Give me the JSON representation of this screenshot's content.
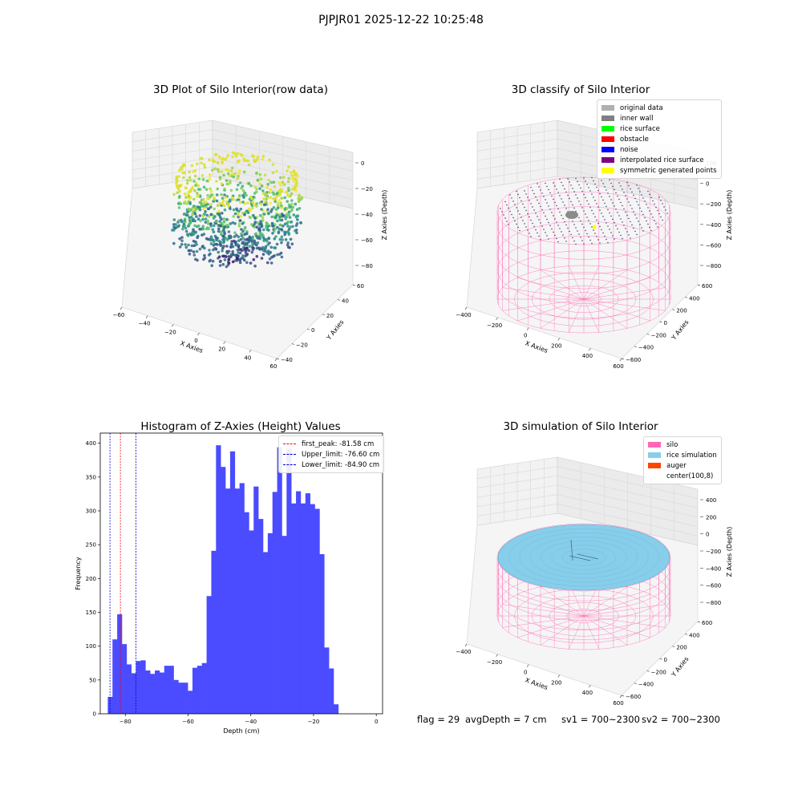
{
  "suptitle": "PJPJR01 2025-12-22 10:25:48",
  "footer": {
    "flag": "flag = 29",
    "avg_depth": "avgDepth = 7 cm",
    "sv1": "sv1 = 700~2300",
    "sv2": "sv2 = 700~2300"
  },
  "colors": {
    "histogram_bar": "#4b4bff",
    "first_peak": "#ff0000",
    "limits": "#0000cc",
    "silo_mesh": "#ff69b4",
    "rice_sim": "#87ceeb",
    "auger": "#ff4500"
  },
  "chart_data": [
    {
      "type": "scatter3d",
      "title": "3D Plot of Silo Interior(row data)",
      "xlabel": "X Axies",
      "ylabel": "Y Axies",
      "zlabel": "Z Axies (Depth)",
      "x_ticks": [
        "−60",
        "−40",
        "−20",
        "0",
        "20",
        "40",
        "60"
      ],
      "y_ticks": [
        "−40",
        "−20",
        "0",
        "20",
        "40",
        "60"
      ],
      "z_ticks": [
        "0",
        "−20",
        "−40",
        "−60",
        "−80"
      ],
      "colormap": "viridis",
      "xlim": [
        -60,
        60
      ],
      "ylim": [
        -40,
        60
      ],
      "zlim": [
        -90,
        0
      ]
    },
    {
      "type": "scatter3d",
      "title": "3D classify of Silo Interior",
      "x_ticks": [
        "−400",
        "−200",
        "0",
        "200",
        "400",
        "600"
      ],
      "y_ticks": [
        "−600",
        "−400",
        "−200",
        "0",
        "200",
        "400",
        "600"
      ],
      "z_ticks": [
        "200",
        "0",
        "−200",
        "−400",
        "−600",
        "−800"
      ],
      "xlabel": "X Axies",
      "ylabel": "Y Axies",
      "zlabel": "Z Axies (Depth)",
      "legend": [
        {
          "label": "original data",
          "color": "#b0b0b0"
        },
        {
          "label": "inner wall",
          "color": "#808080"
        },
        {
          "label": "rice surface",
          "color": "#00ff00"
        },
        {
          "label": "obstacle",
          "color": "#ff0000"
        },
        {
          "label": "noise",
          "color": "#0000ff"
        },
        {
          "label": "interpolated rice surface",
          "color": "#800080"
        },
        {
          "label": "symmetric generated points",
          "color": "#ffff00"
        }
      ],
      "legend_position": "top-right"
    },
    {
      "type": "bar",
      "title": "Histogram of Z-Axies (Height) Values",
      "xlabel": "Depth (cm)",
      "ylabel": "Frequency",
      "bin_width": 1.5,
      "bin_start": -85.6,
      "values": [
        25,
        110,
        147,
        103,
        73,
        60,
        78,
        79,
        64,
        59,
        64,
        61,
        71,
        71,
        50,
        46,
        46,
        34,
        68,
        71,
        75,
        174,
        241,
        397,
        365,
        333,
        388,
        333,
        341,
        298,
        271,
        336,
        288,
        239,
        267,
        328,
        394,
        263,
        392,
        311,
        329,
        311,
        326,
        310,
        303,
        236,
        98,
        67,
        14
      ],
      "xlim": [
        -88,
        2
      ],
      "ylim": [
        0,
        415
      ],
      "x_ticks": [
        -80,
        -60,
        -40,
        -20,
        0
      ],
      "y_ticks": [
        0,
        50,
        100,
        150,
        200,
        250,
        300,
        350,
        400
      ],
      "vlines": [
        {
          "x": -81.58,
          "label": "first_peak: -81.58 cm",
          "color": "#ff0000"
        },
        {
          "x": -76.6,
          "label": "Upper_limit: -76.60 cm",
          "color": "#0000cc"
        },
        {
          "x": -84.9,
          "label": "Lower_limit: -84.90 cm",
          "color": "#0000cc"
        }
      ],
      "legend_position": "top-right"
    },
    {
      "type": "surface3d",
      "title": "3D simulation of Silo Interior",
      "x_ticks": [
        "−400",
        "−200",
        "0",
        "200",
        "400",
        "600"
      ],
      "y_ticks": [
        "−600",
        "−400",
        "−200",
        "0",
        "200",
        "400",
        "600"
      ],
      "z_ticks": [
        "400",
        "200",
        "0",
        "−200",
        "−400",
        "−600",
        "−800"
      ],
      "xlabel": "X Axies",
      "ylabel": "Y Axies",
      "zlabel": "Z Axies (Depth)",
      "legend": [
        {
          "label": "silo",
          "color": "#ff69b4"
        },
        {
          "label": "rice simulation",
          "color": "#87ceeb"
        },
        {
          "label": "auger",
          "color": "#ff4500"
        },
        {
          "label": "center(100,8)",
          "color": ""
        }
      ],
      "legend_position": "top-right"
    }
  ]
}
